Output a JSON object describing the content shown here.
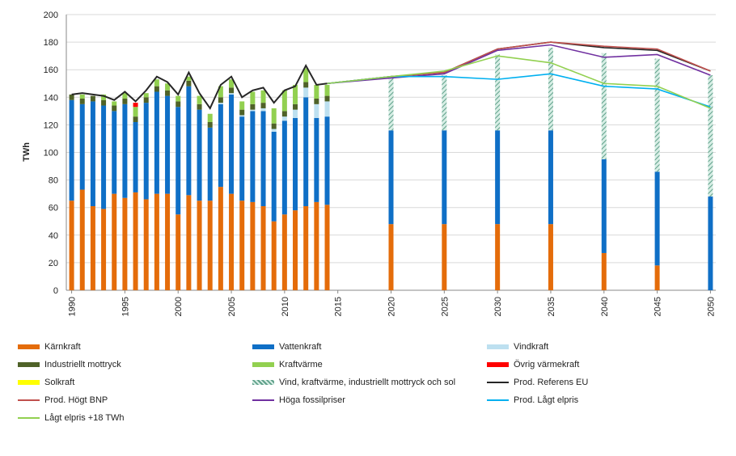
{
  "chart_data": {
    "type": "bar",
    "subtype": "stacked-bar-with-lines",
    "ylabel": "TWh",
    "ylim": [
      0,
      200
    ],
    "yticks": [
      0,
      20,
      40,
      60,
      80,
      100,
      120,
      140,
      160,
      180,
      200
    ],
    "x_tick_labels": [
      "1990",
      "1995",
      "2000",
      "2005",
      "2010",
      "2015",
      "2020",
      "2025",
      "2030",
      "2035",
      "2040",
      "2045",
      "2050"
    ],
    "grid": "horizontal",
    "legend_position": "bottom",
    "historic": {
      "years": [
        1990,
        1991,
        1992,
        1993,
        1994,
        1995,
        1996,
        1997,
        1998,
        1999,
        2000,
        2001,
        2002,
        2003,
        2004,
        2005,
        2006,
        2007,
        2008,
        2009,
        2010,
        2011,
        2012,
        2013,
        2014
      ],
      "stack_series": [
        {
          "key": "karnkraft",
          "name": "Kärnkraft",
          "color": "#E46C0A",
          "values": [
            65,
            73,
            61,
            59,
            70,
            67,
            71,
            66,
            70,
            70,
            55,
            69,
            65,
            65,
            75,
            70,
            65,
            64,
            61,
            50,
            55,
            58,
            61,
            64,
            62
          ]
        },
        {
          "key": "vattenkraft",
          "name": "Vattenkraft",
          "color": "#0F6FC6",
          "values": [
            73,
            62,
            76,
            75,
            60,
            68,
            51,
            70,
            74,
            71,
            78,
            79,
            66,
            53,
            60,
            72,
            61,
            66,
            69,
            65,
            68,
            67,
            79,
            61,
            64
          ]
        },
        {
          "key": "vindkraft",
          "name": "Vindkraft",
          "color": "#BDE0F0",
          "values": [
            0,
            0,
            0,
            0,
            0,
            0,
            0,
            0,
            0,
            0,
            0,
            0,
            0,
            0,
            1,
            1,
            1,
            1,
            2,
            2,
            3,
            6,
            7,
            10,
            11
          ]
        },
        {
          "key": "ind_mottryck",
          "name": "Industriellt mottryck",
          "color": "#4F6228",
          "values": [
            4,
            4,
            4,
            4,
            4,
            4,
            4,
            4,
            4,
            4,
            4,
            4,
            4,
            4,
            4,
            4,
            4,
            4,
            4,
            4,
            4,
            4,
            4,
            4,
            4
          ]
        },
        {
          "key": "kraftvarme",
          "name": "Kraftvärme",
          "color": "#92D050",
          "values": [
            0,
            3,
            0,
            4,
            3,
            4,
            7,
            3,
            5,
            5,
            4,
            3,
            6,
            6,
            8,
            6,
            6,
            9,
            9,
            11,
            15,
            14,
            10,
            10,
            8
          ]
        },
        {
          "key": "ovrig_varme",
          "name": "Övrig värmekraft",
          "color": "#FF0000",
          "values": [
            0,
            0,
            0,
            0,
            0,
            0,
            3,
            0,
            0,
            0,
            0,
            0,
            0,
            0,
            0,
            0,
            0,
            0,
            0,
            0,
            0,
            0,
            0,
            0,
            0
          ]
        },
        {
          "key": "solkraft",
          "name": "Solkraft",
          "color": "#FFFF00",
          "values": [
            0,
            0,
            0,
            0,
            0,
            0,
            0,
            0,
            0,
            0,
            0,
            0,
            0,
            0,
            0,
            0,
            0,
            0,
            0,
            0,
            0,
            0,
            0,
            0,
            0
          ]
        }
      ],
      "total_line": [
        142,
        143,
        142,
        141,
        138,
        144,
        137,
        145,
        155,
        151,
        142,
        158,
        143,
        132,
        149,
        155,
        140,
        145,
        147,
        136,
        145,
        148,
        163,
        149,
        150
      ]
    },
    "projection": {
      "years": [
        2020,
        2025,
        2030,
        2035,
        2040,
        2045,
        2050
      ],
      "karnkraft": [
        48,
        48,
        48,
        48,
        27,
        18,
        0
      ],
      "vattenkraft": [
        68,
        68,
        68,
        68,
        68,
        68,
        68
      ],
      "vind_kraftvarme_mottryck_sol": [
        38,
        40,
        55,
        60,
        77,
        82,
        88
      ]
    },
    "line_series": [
      {
        "key": "ref_eu",
        "name": "Prod. Referens EU",
        "color": "#262626",
        "x": [
          2014,
          2020,
          2025,
          2030,
          2035,
          2040,
          2045,
          2050
        ],
        "values": [
          150,
          155,
          158,
          175,
          180,
          176,
          174,
          159
        ]
      },
      {
        "key": "hogt_bnp",
        "name": "Prod. Högt BNP",
        "color": "#C0504D",
        "x": [
          2014,
          2020,
          2025,
          2030,
          2035,
          2040,
          2045,
          2050
        ],
        "values": [
          150,
          155,
          158,
          175,
          180,
          177,
          175,
          159
        ]
      },
      {
        "key": "hoga_fossil",
        "name": "Höga fossilpriser",
        "color": "#7030A0",
        "x": [
          2014,
          2020,
          2025,
          2030,
          2035,
          2040,
          2045,
          2050
        ],
        "values": [
          150,
          154,
          157,
          174,
          178,
          169,
          171,
          156
        ]
      },
      {
        "key": "lagt_elpris",
        "name": "Prod. Lågt elpris",
        "color": "#00B0F0",
        "x": [
          2014,
          2020,
          2025,
          2030,
          2035,
          2040,
          2045,
          2050
        ],
        "values": [
          150,
          155,
          155,
          153,
          157,
          148,
          146,
          133
        ]
      },
      {
        "key": "lagt_elpris_18",
        "name": "Lågt elpris +18 TWh",
        "color": "#92D050",
        "x": [
          2014,
          2020,
          2025,
          2030,
          2035,
          2040,
          2045,
          2050
        ],
        "values": [
          150,
          155,
          159,
          170,
          165,
          150,
          148,
          132
        ]
      }
    ],
    "legend": [
      {
        "label": "Kärnkraft",
        "kind": "swatch",
        "color": "#E46C0A"
      },
      {
        "label": "Vattenkraft",
        "kind": "swatch",
        "color": "#0F6FC6"
      },
      {
        "label": "Vindkraft",
        "kind": "swatch",
        "color": "#BDE0F0"
      },
      {
        "label": "Industriellt mottryck",
        "kind": "swatch",
        "color": "#4F6228"
      },
      {
        "label": "Kraftvärme",
        "kind": "swatch",
        "color": "#92D050"
      },
      {
        "label": "Övrig värmekraft",
        "kind": "swatch",
        "color": "#FF0000"
      },
      {
        "label": "Solkraft",
        "kind": "swatch",
        "color": "#FFFF00"
      },
      {
        "label": "Vind, kraftvärme, industriellt mottryck och sol",
        "kind": "hatch",
        "color": "#5FA08A"
      },
      {
        "label": "Prod. Referens EU",
        "kind": "line",
        "color": "#262626"
      },
      {
        "label": "Prod. Högt BNP",
        "kind": "line",
        "color": "#C0504D"
      },
      {
        "label": "Höga fossilpriser",
        "kind": "line",
        "color": "#7030A0"
      },
      {
        "label": "Prod. Lågt elpris",
        "kind": "line",
        "color": "#00B0F0"
      },
      {
        "label": "Lågt elpris +18 TWh",
        "kind": "line",
        "color": "#92D050"
      }
    ]
  }
}
